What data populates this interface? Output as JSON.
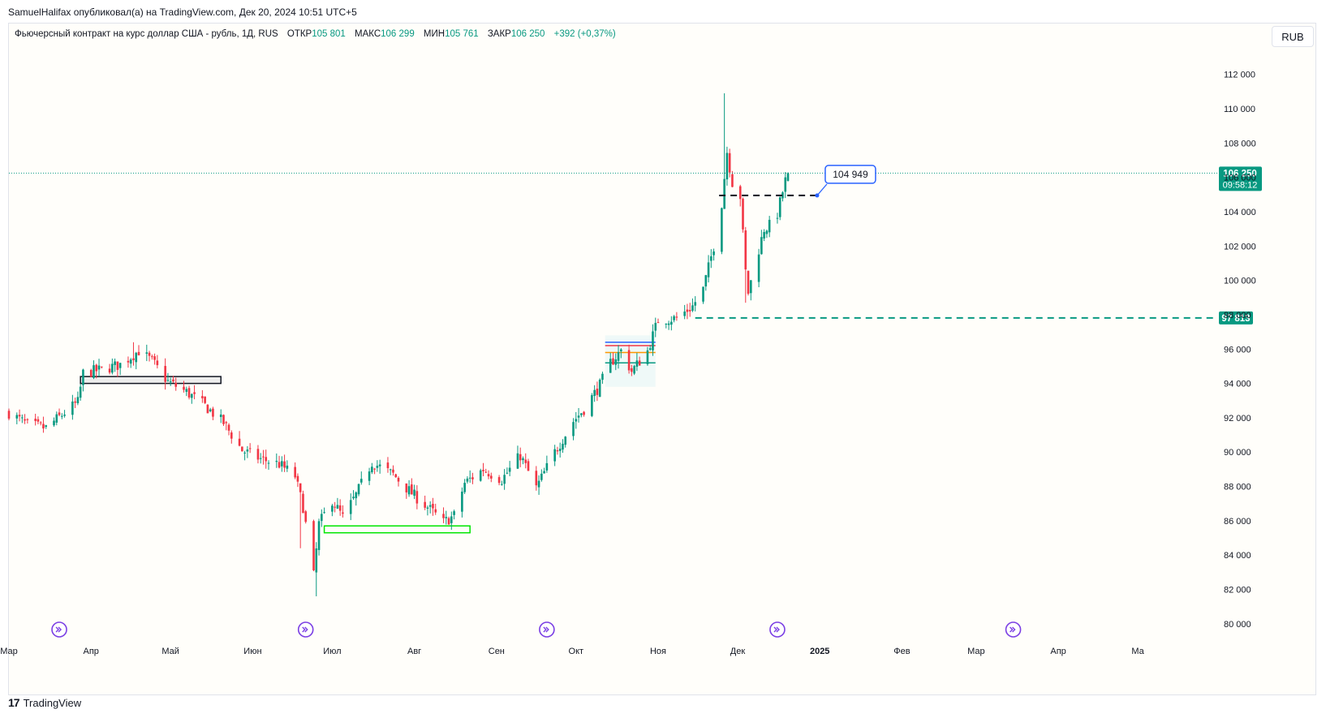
{
  "header": {
    "caption": "SamuelHalifax опубликовал(а) на TradingView.com, Дек 20, 2024 10:51 UTC+5"
  },
  "legend": {
    "instrument": "Фьючерсный контракт на курс доллар США - рубль, 1Д, RUS",
    "open_label": "ОТКР",
    "open_value": "105 801",
    "high_label": "МАКС",
    "high_value": "106 299",
    "low_label": "МИН",
    "low_value": "105 761",
    "close_label": "ЗАКР",
    "close_value": "106 250",
    "change": "+392 (+0,37%)"
  },
  "toolbar": {
    "currency": "RUB"
  },
  "footer": {
    "brand": "TradingView",
    "brand_mark": "17"
  },
  "colors": {
    "up": "#089981",
    "down": "#f23645",
    "background": "#fffefa",
    "grid": "#e0e3eb",
    "price_line": "#089981",
    "event_icon": "#7b3fe4",
    "support_dash": "#089981",
    "callout_border": "#2962ff"
  },
  "chart_data": {
    "type": "candlestick",
    "title": "Фьючерсный контракт на курс доллар США - рубль, 1Д, RUS",
    "ylim": [
      79000,
      113500
    ],
    "y_ticks": [
      80000,
      82000,
      84000,
      86000,
      88000,
      90000,
      92000,
      94000,
      96000,
      98000,
      100000,
      102000,
      104000,
      106000,
      108000,
      110000,
      112000
    ],
    "y_tick_labels": [
      "80 000",
      "82 000",
      "84 000",
      "86 000",
      "88 000",
      "90 000",
      "92 000",
      "94 000",
      "96 000",
      "98 000",
      "100 000",
      "102 000",
      "104 000",
      "106 000",
      "108 000",
      "110 000",
      "112 000"
    ],
    "x_start": "2024-03-01",
    "x_end": "2025-05-31",
    "x_ticks": [
      {
        "date": "2024-03-01",
        "label": "Мар"
      },
      {
        "date": "2024-04-01",
        "label": "Апр"
      },
      {
        "date": "2024-05-01",
        "label": "Май"
      },
      {
        "date": "2024-06-01",
        "label": "Июн"
      },
      {
        "date": "2024-07-01",
        "label": "Июл"
      },
      {
        "date": "2024-08-01",
        "label": "Авг"
      },
      {
        "date": "2024-09-01",
        "label": "Сен"
      },
      {
        "date": "2024-10-01",
        "label": "Окт"
      },
      {
        "date": "2024-11-01",
        "label": "Ноя"
      },
      {
        "date": "2024-12-01",
        "label": "Дек"
      },
      {
        "date": "2025-01-01",
        "label": "2025"
      },
      {
        "date": "2025-02-01",
        "label": "Фев"
      },
      {
        "date": "2025-03-01",
        "label": "Мар"
      },
      {
        "date": "2025-04-01",
        "label": "Апр"
      },
      {
        "date": "2025-05-01",
        "label": "Ма"
      }
    ],
    "ohlc_path": [
      [
        "2024-03-01",
        92300
      ],
      [
        "2024-03-08",
        91600
      ],
      [
        "2024-03-15",
        91400
      ],
      [
        "2024-03-22",
        92300
      ],
      [
        "2024-03-27",
        92900
      ],
      [
        "2024-03-29",
        94600
      ],
      [
        "2024-04-05",
        94800
      ],
      [
        "2024-04-12",
        95100
      ],
      [
        "2024-04-19",
        95900
      ],
      [
        "2024-04-24",
        95300
      ],
      [
        "2024-04-30",
        94100
      ],
      [
        "2024-05-07",
        93500
      ],
      [
        "2024-05-14",
        92700
      ],
      [
        "2024-05-21",
        91700
      ],
      [
        "2024-05-28",
        90100
      ],
      [
        "2024-06-04",
        89600
      ],
      [
        "2024-06-11",
        89300
      ],
      [
        "2024-06-17",
        88600
      ],
      [
        "2024-06-20",
        86800
      ],
      [
        "2024-06-24",
        82800
      ],
      [
        "2024-06-26",
        85800
      ],
      [
        "2024-07-01",
        87200
      ],
      [
        "2024-07-05",
        86200
      ],
      [
        "2024-07-10",
        87500
      ],
      [
        "2024-07-16",
        89400
      ],
      [
        "2024-07-24",
        88700
      ],
      [
        "2024-07-31",
        87600
      ],
      [
        "2024-08-06",
        86800
      ],
      [
        "2024-08-12",
        85900
      ],
      [
        "2024-08-16",
        86300
      ],
      [
        "2024-08-20",
        88200
      ],
      [
        "2024-08-27",
        89000
      ],
      [
        "2024-09-03",
        88400
      ],
      [
        "2024-09-10",
        89800
      ],
      [
        "2024-09-16",
        87900
      ],
      [
        "2024-09-23",
        90000
      ],
      [
        "2024-09-30",
        91800
      ],
      [
        "2024-10-04",
        92500
      ],
      [
        "2024-10-10",
        93900
      ],
      [
        "2024-10-14",
        95200
      ],
      [
        "2024-10-18",
        95900
      ],
      [
        "2024-10-22",
        94700
      ],
      [
        "2024-10-28",
        95900
      ],
      [
        "2024-11-01",
        97700
      ],
      [
        "2024-11-08",
        97800
      ],
      [
        "2024-11-14",
        98500
      ],
      [
        "2024-11-18",
        99500
      ],
      [
        "2024-11-22",
        102000
      ],
      [
        "2024-11-25",
        104500
      ],
      [
        "2024-11-27",
        107500
      ],
      [
        "2024-11-29",
        105700
      ],
      [
        "2024-12-02",
        104900
      ],
      [
        "2024-12-04",
        100500
      ],
      [
        "2024-12-05",
        99300
      ],
      [
        "2024-12-09",
        101800
      ],
      [
        "2024-12-11",
        103000
      ],
      [
        "2024-12-13",
        103200
      ],
      [
        "2024-12-16",
        103900
      ],
      [
        "2024-12-19",
        105800
      ],
      [
        "2024-12-20",
        106250
      ]
    ],
    "last_price": {
      "value": 106250,
      "label": "106 250",
      "countdown": "09:58:12"
    },
    "horizontal_levels": [
      {
        "value": 97813,
        "label": "97 813",
        "style": "dashed",
        "color": "#089981"
      },
      {
        "value": 104949,
        "label": "104 949",
        "style": "dashed",
        "color": "#131722"
      }
    ],
    "zones": [
      {
        "name": "resistance-box",
        "from": "2024-03-28",
        "to": "2024-05-20",
        "y_top": 94400,
        "y_bottom": 94000,
        "color": "#131722"
      },
      {
        "name": "support-box",
        "from": "2024-06-28",
        "to": "2024-08-22",
        "y_top": 85700,
        "y_bottom": 85300,
        "color": "#00e600"
      }
    ],
    "event_markers": [
      "2024-03-20",
      "2024-06-21",
      "2024-09-20",
      "2024-12-16",
      "2025-03-15"
    ],
    "grid": false
  }
}
